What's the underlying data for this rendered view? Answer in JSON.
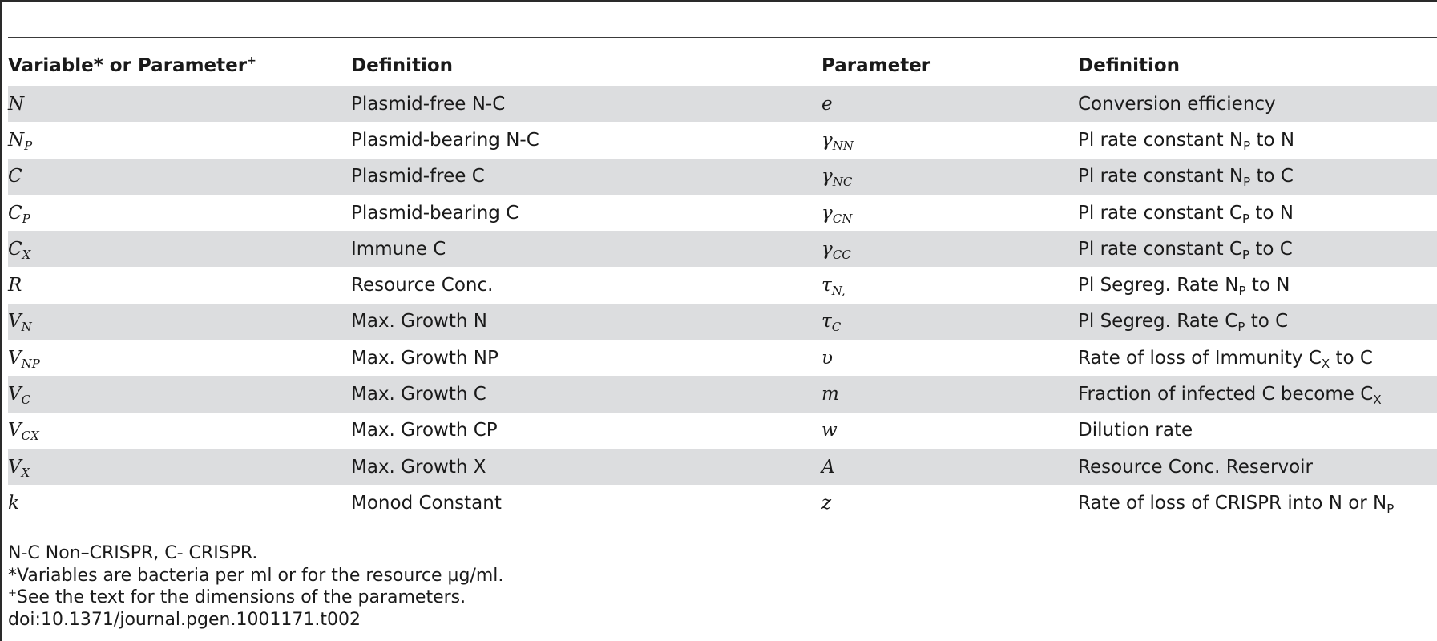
{
  "table": {
    "headers": [
      "Variable* or Parameter",
      "Definition",
      "Parameter",
      "Definition"
    ],
    "header_marker": "+",
    "rows": [
      {
        "v": "N",
        "vs": "",
        "d1": "Plasmid-free N-C",
        "p": "e",
        "ps": "",
        "d2a": "Conversion efficiency",
        "d2s": "",
        "d2b": ""
      },
      {
        "v": "N",
        "vs": "P",
        "d1": "Plasmid-bearing N-C",
        "p": "γ",
        "ps": "NN",
        "d2a": "Pl rate constant N",
        "d2s": "P",
        "d2b": " to N"
      },
      {
        "v": "C",
        "vs": "",
        "d1": "Plasmid-free C",
        "p": "γ",
        "ps": "NC",
        "d2a": "Pl rate constant N",
        "d2s": "P",
        "d2b": " to C"
      },
      {
        "v": "C",
        "vs": "P",
        "d1": "Plasmid-bearing C",
        "p": "γ",
        "ps": "CN",
        "d2a": "Pl rate constant C",
        "d2s": "P",
        "d2b": " to N"
      },
      {
        "v": "C",
        "vs": "X",
        "d1": "Immune C",
        "p": "γ",
        "ps": "CC",
        "d2a": "Pl rate constant C",
        "d2s": "P",
        "d2b": " to C"
      },
      {
        "v": "R",
        "vs": "",
        "d1": "Resource Conc.",
        "p": "τ",
        "ps": "N,",
        "d2a": "Pl Segreg. Rate N",
        "d2s": "P",
        "d2b": " to N"
      },
      {
        "v": "V",
        "vs": "N",
        "d1": "Max. Growth N",
        "p": "τ",
        "ps": "C",
        "d2a": "Pl Segreg. Rate C",
        "d2s": "P",
        "d2b": " to C"
      },
      {
        "v": "V",
        "vs": "NP",
        "d1": "Max. Growth NP",
        "p": "υ",
        "ps": "",
        "d2a": "Rate of loss of Immunity C",
        "d2s": "X",
        "d2b": " to C"
      },
      {
        "v": "V",
        "vs": "C",
        "d1": "Max. Growth C",
        "p": "m",
        "ps": "",
        "d2a": "Fraction of infected C become C",
        "d2s": "X",
        "d2b": ""
      },
      {
        "v": "V",
        "vs": "CX",
        "d1": "Max. Growth CP",
        "p": "w",
        "ps": "",
        "d2a": "Dilution rate",
        "d2s": "",
        "d2b": ""
      },
      {
        "v": "V",
        "vs": "X",
        "d1": "Max. Growth X",
        "p": "A",
        "ps": "",
        "d2a": "Resource Conc. Reservoir",
        "d2s": "",
        "d2b": ""
      },
      {
        "v": "k",
        "vs": "",
        "d1": "Monod Constant",
        "p": "z",
        "ps": "",
        "d2a": "Rate of loss of CRISPR into N or N",
        "d2s": "P",
        "d2b": ""
      }
    ]
  },
  "footnotes": {
    "abbrev": "N-C Non–CRISPR, C- CRISPR.",
    "star": "*Variables are bacteria per ml or for the resource µg/ml.",
    "plus_marker": "+",
    "plus": "See the text for the dimensions of the parameters.",
    "doi": "doi:10.1371/journal.pgen.1001171.t002"
  },
  "colors": {
    "row_shade": "#dcdddf",
    "rule": "#3a3a3a"
  }
}
